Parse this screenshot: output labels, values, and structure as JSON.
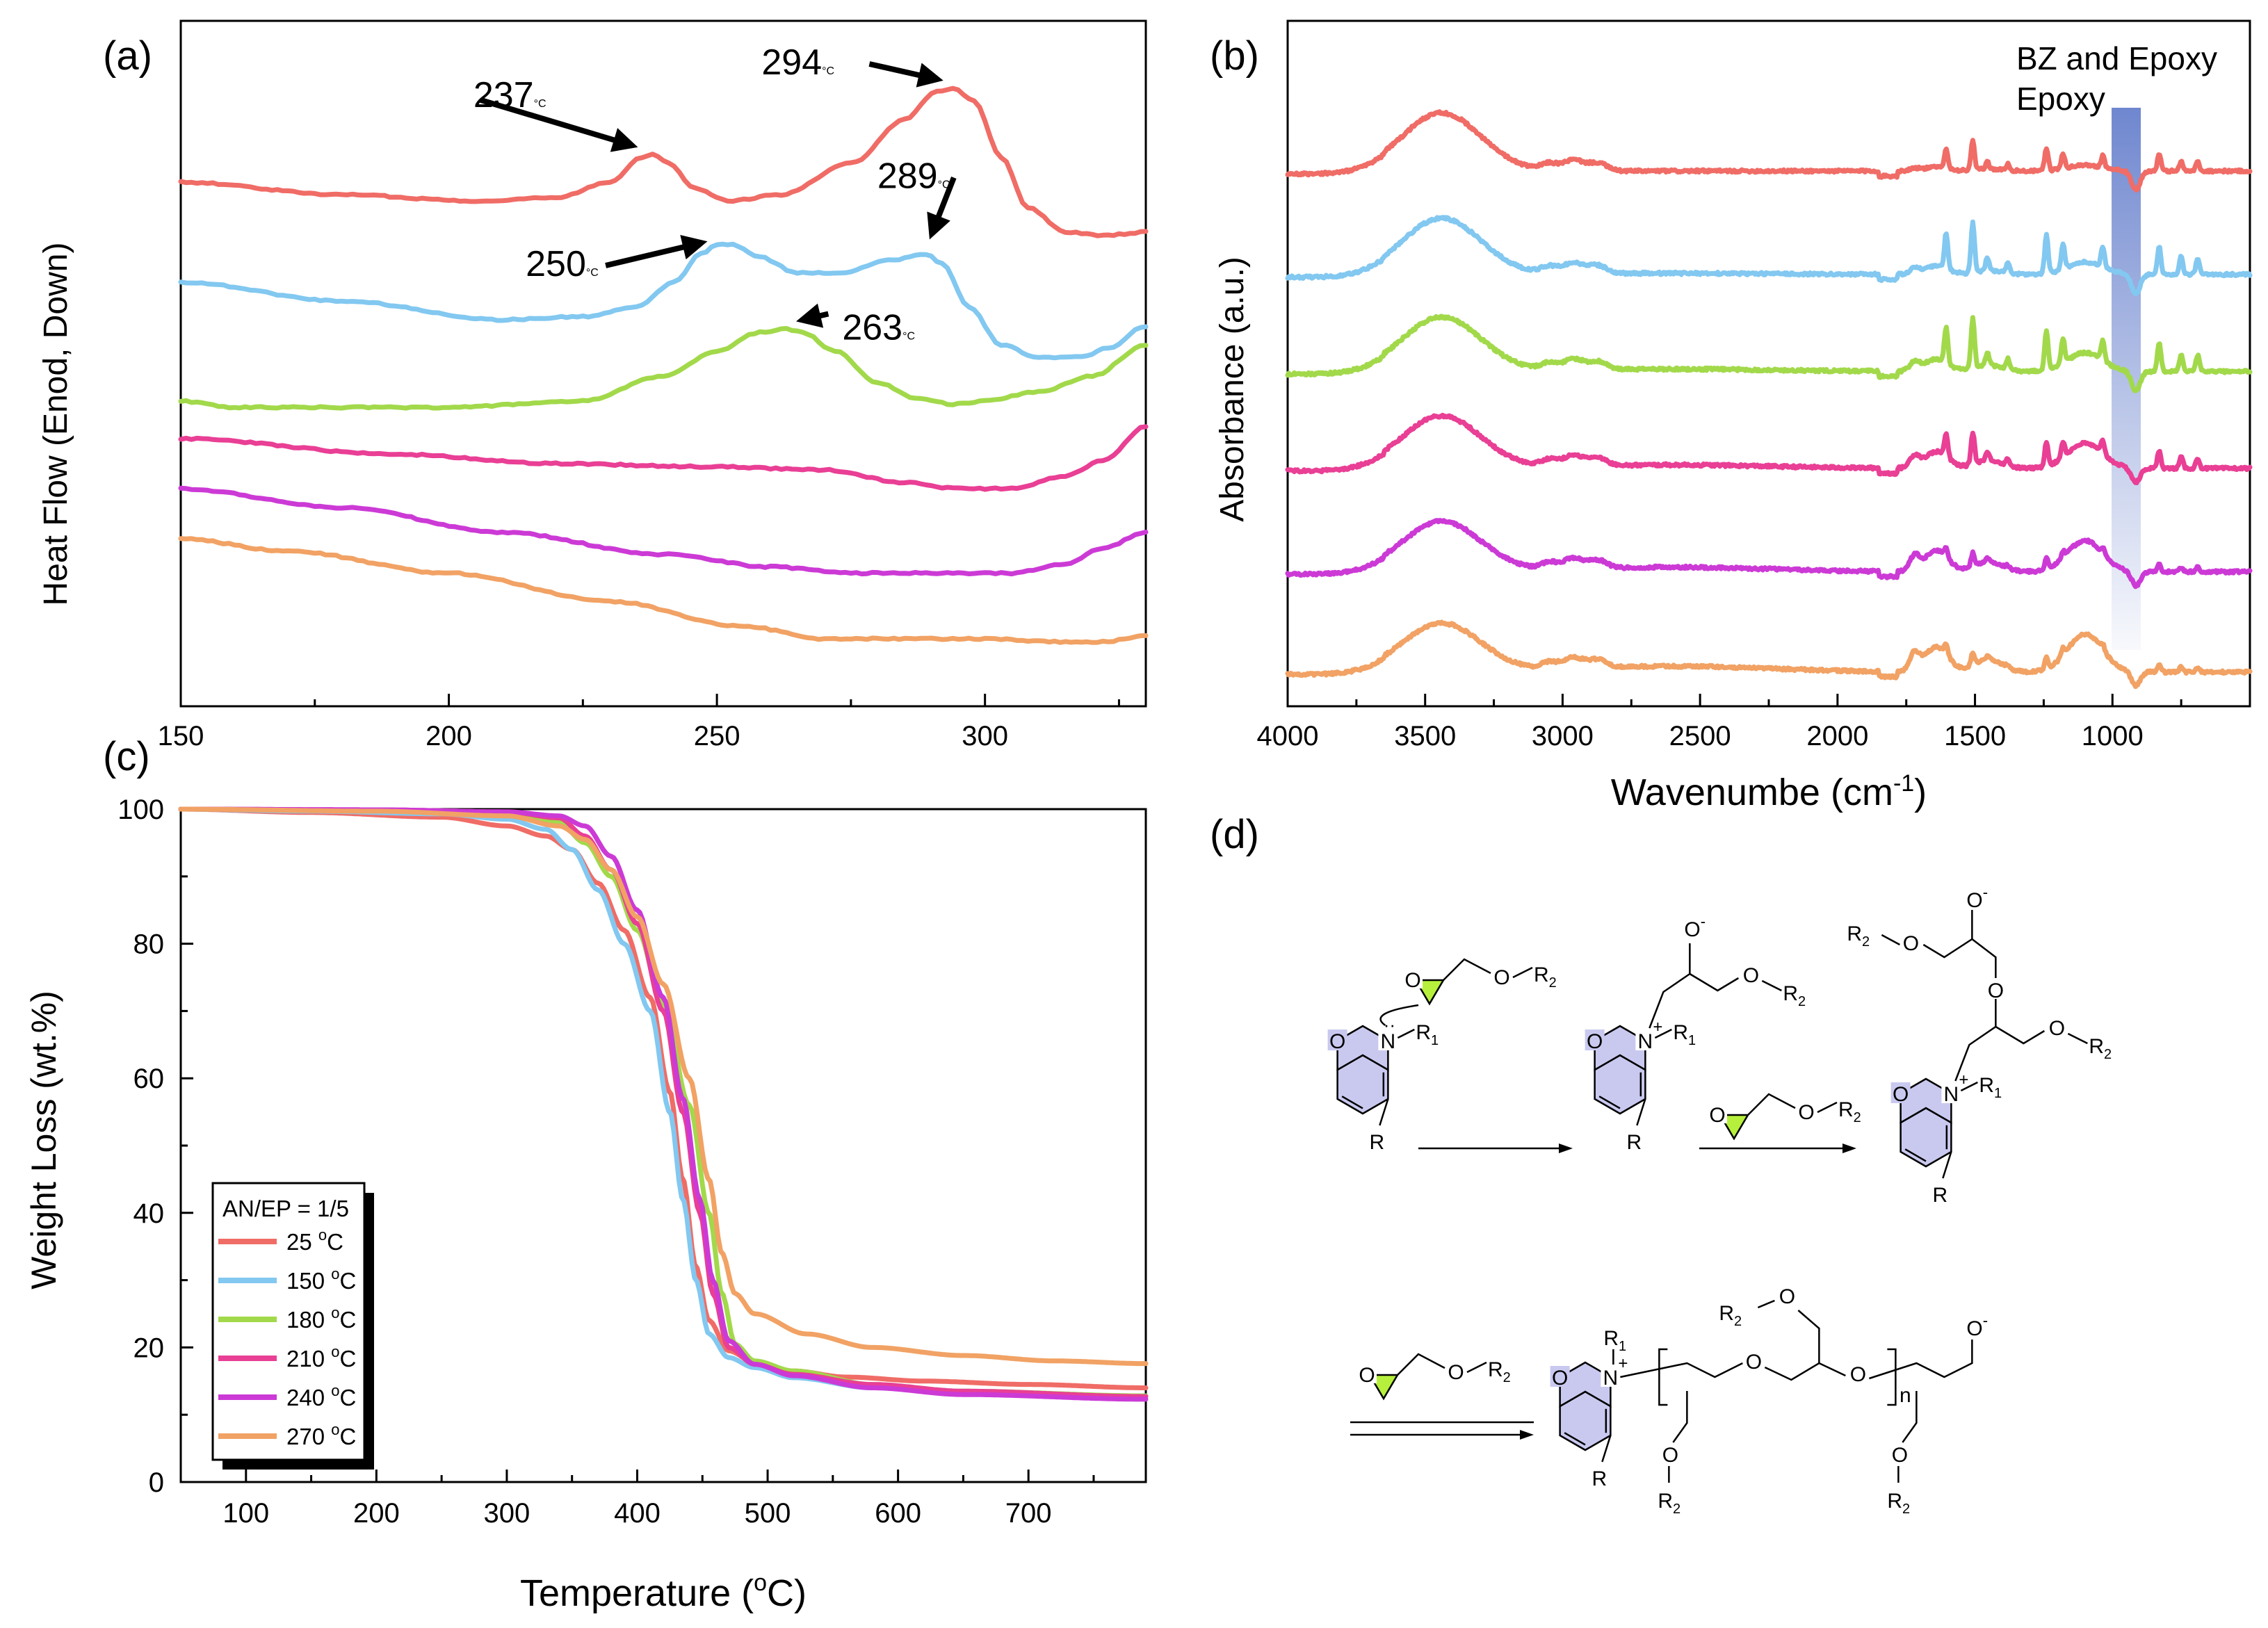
{
  "colors": {
    "red": "#f06c66",
    "blue": "#82c8f0",
    "green": "#a2d94b",
    "pink": "#e93f95",
    "purple": "#cc3ad6",
    "orange": "#f1a264",
    "ring_fill": "#c9c9f0",
    "epoxide_fill": "#b6f03c",
    "band": "#6f87cf"
  },
  "chart_data": [
    {
      "panel": "(a)",
      "type": "line",
      "title": "",
      "xlabel": "",
      "ylabel": "Heat Flow (Enod, Down)",
      "xlim": [
        150,
        330
      ],
      "ylim": [
        0,
        100
      ],
      "xticks": [
        150,
        200,
        250,
        300
      ],
      "series": [
        {
          "name": "25 °C",
          "color": "red",
          "points": [
            [
              150,
              82
            ],
            [
              180,
              80
            ],
            [
              205,
              79
            ],
            [
              220,
              79.5
            ],
            [
              230,
              82
            ],
            [
              236,
              86
            ],
            [
              238,
              86.5
            ],
            [
              241,
              85
            ],
            [
              246,
              81
            ],
            [
              252,
              79
            ],
            [
              262,
              80
            ],
            [
              275,
              85
            ],
            [
              285,
              92
            ],
            [
              291,
              96.5
            ],
            [
              294,
              97
            ],
            [
              298,
              95
            ],
            [
              303,
              86
            ],
            [
              308,
              78
            ],
            [
              315,
              74
            ],
            [
              322,
              73.5
            ],
            [
              330,
              74
            ]
          ]
        },
        {
          "name": "150 °C",
          "color": "blue",
          "points": [
            [
              150,
              66
            ],
            [
              180,
              63
            ],
            [
              210,
              60
            ],
            [
              225,
              60.5
            ],
            [
              235,
              62
            ],
            [
              242,
              66
            ],
            [
              247,
              70.5
            ],
            [
              250,
              72
            ],
            [
              253,
              72
            ],
            [
              258,
              70
            ],
            [
              265,
              67.5
            ],
            [
              273,
              67.5
            ],
            [
              282,
              69.5
            ],
            [
              289,
              70.5
            ],
            [
              292,
              69
            ],
            [
              297,
              62
            ],
            [
              303,
              56
            ],
            [
              310,
              54
            ],
            [
              318,
              54
            ],
            [
              323,
              55.5
            ],
            [
              330,
              59
            ]
          ]
        },
        {
          "name": "180 °C",
          "color": "green",
          "points": [
            [
              150,
              47
            ],
            [
              160,
              46
            ],
            [
              200,
              46
            ],
            [
              225,
              47
            ],
            [
              240,
              51
            ],
            [
              250,
              55
            ],
            [
              258,
              58
            ],
            [
              263,
              58.5
            ],
            [
              266,
              58
            ],
            [
              272,
              55
            ],
            [
              280,
              50
            ],
            [
              287,
              47.5
            ],
            [
              294,
              46.5
            ],
            [
              300,
              47
            ],
            [
              310,
              48.5
            ],
            [
              320,
              51
            ],
            [
              330,
              56
            ]
          ]
        },
        {
          "name": "210 °C",
          "color": "pink",
          "points": [
            [
              150,
              41
            ],
            [
              190,
              38.5
            ],
            [
              220,
              37
            ],
            [
              250,
              36.5
            ],
            [
              270,
              36
            ],
            [
              285,
              34
            ],
            [
              295,
              33
            ],
            [
              305,
              33
            ],
            [
              315,
              35
            ],
            [
              322,
              37.5
            ],
            [
              330,
              43
            ]
          ]
        },
        {
          "name": "240 °C",
          "color": "purple",
          "points": [
            [
              150,
              33
            ],
            [
              180,
              30
            ],
            [
              210,
              26
            ],
            [
              240,
              22.5
            ],
            [
              260,
              20.5
            ],
            [
              275,
              19.5
            ],
            [
              290,
              19.5
            ],
            [
              305,
              19.5
            ],
            [
              315,
              21
            ],
            [
              322,
              23.5
            ],
            [
              330,
              26
            ]
          ]
        },
        {
          "name": "270 °C",
          "color": "orange",
          "points": [
            [
              150,
              25
            ],
            [
              170,
              23
            ],
            [
              200,
              19.5
            ],
            [
              230,
              15
            ],
            [
              255,
              11
            ],
            [
              270,
              9
            ],
            [
              285,
              9
            ],
            [
              300,
              9
            ],
            [
              315,
              8.5
            ],
            [
              322,
              8.5
            ],
            [
              330,
              9.5
            ]
          ]
        }
      ],
      "annotations": [
        {
          "text": "237",
          "x": 237,
          "series": "25 °C"
        },
        {
          "text": "294",
          "x": 294,
          "series": "25 °C"
        },
        {
          "text": "250",
          "x": 250,
          "series": "150 °C"
        },
        {
          "text": "289",
          "x": 289,
          "series": "150 °C"
        },
        {
          "text": "263",
          "x": 263,
          "series": "180 °C"
        }
      ],
      "annotation_unit": "°C"
    },
    {
      "panel": "(b)",
      "type": "line",
      "title": "",
      "xlabel": "Wavenumbe (cm",
      "xlabel_sup": "-1",
      "xlabel_end": ")",
      "ylabel": "Absorbance (a.u.)",
      "xlim": [
        4000,
        500
      ],
      "ylim": [
        0,
        100
      ],
      "xticks": [
        4000,
        3500,
        3000,
        2500,
        2000,
        1500,
        1000
      ],
      "band_label_1": "BZ and Epoxy",
      "band_label_2": "Epoxy",
      "band_center": 950,
      "series": [
        {
          "name": "25 °C",
          "color": "red",
          "offset": 80
        },
        {
          "name": "150 °C",
          "color": "blue",
          "offset": 64
        },
        {
          "name": "180 °C",
          "color": "green",
          "offset": 49
        },
        {
          "name": "210 °C",
          "color": "pink",
          "offset": 34
        },
        {
          "name": "240 °C",
          "color": "purple",
          "offset": 18
        },
        {
          "name": "270 °C",
          "color": "orange",
          "offset": 2.5
        }
      ]
    },
    {
      "panel": "(c)",
      "type": "line",
      "title": "",
      "xlabel": "Temperature (",
      "xlabel_sup": "o",
      "xlabel_end": "C)",
      "ylabel": "Weight Loss (wt.%)",
      "xlim": [
        50,
        790
      ],
      "ylim": [
        0,
        100
      ],
      "xticks": [
        100,
        200,
        300,
        400,
        500,
        600,
        700
      ],
      "yticks": [
        0,
        20,
        40,
        60,
        80,
        100
      ],
      "legend_title": "AN/EP = 1/5",
      "legend_position": "bottom-left",
      "series": [
        {
          "name": "25 °C",
          "label_num": "25 ",
          "color": "red",
          "points": [
            [
              50,
              100
            ],
            [
              150,
              99.5
            ],
            [
              250,
              98.8
            ],
            [
              300,
              97.5
            ],
            [
              330,
              96
            ],
            [
              350,
              94
            ],
            [
              370,
              89
            ],
            [
              390,
              82
            ],
            [
              410,
              72
            ],
            [
              425,
              58
            ],
            [
              435,
              45
            ],
            [
              445,
              32
            ],
            [
              455,
              24
            ],
            [
              470,
              19.5
            ],
            [
              490,
              17.8
            ],
            [
              520,
              16.5
            ],
            [
              560,
              15.6
            ],
            [
              620,
              15
            ],
            [
              700,
              14.5
            ],
            [
              790,
              14
            ]
          ]
        },
        {
          "name": "150 °C",
          "label_num": "150 ",
          "color": "blue",
          "points": [
            [
              50,
              100
            ],
            [
              150,
              99.7
            ],
            [
              250,
              99.3
            ],
            [
              300,
              98.5
            ],
            [
              330,
              97
            ],
            [
              350,
              94
            ],
            [
              370,
              88
            ],
            [
              390,
              80
            ],
            [
              410,
              70
            ],
            [
              425,
              55
            ],
            [
              435,
              42
            ],
            [
              445,
              30
            ],
            [
              455,
              22
            ],
            [
              470,
              18.5
            ],
            [
              490,
              17
            ],
            [
              520,
              15.5
            ],
            [
              580,
              14
            ],
            [
              650,
              13.3
            ],
            [
              790,
              12.8
            ]
          ]
        },
        {
          "name": "180 °C",
          "label_num": "180 ",
          "color": "green",
          "points": [
            [
              50,
              100
            ],
            [
              200,
              99.8
            ],
            [
              300,
              99.3
            ],
            [
              340,
              98
            ],
            [
              360,
              95
            ],
            [
              380,
              90
            ],
            [
              400,
              82
            ],
            [
              420,
              71
            ],
            [
              440,
              56
            ],
            [
              455,
              40
            ],
            [
              465,
              28
            ],
            [
              475,
              20.5
            ],
            [
              490,
              18
            ],
            [
              520,
              16.5
            ],
            [
              580,
              14.5
            ],
            [
              650,
              13.5
            ],
            [
              790,
              12.8
            ]
          ]
        },
        {
          "name": "210 °C",
          "label_num": "210 ",
          "color": "pink",
          "points": [
            [
              50,
              100
            ],
            [
              200,
              99.9
            ],
            [
              300,
              99.6
            ],
            [
              340,
              98.7
            ],
            [
              360,
              96
            ],
            [
              380,
              91
            ],
            [
              400,
              83
            ],
            [
              420,
              70
            ],
            [
              435,
              55
            ],
            [
              448,
              40
            ],
            [
              458,
              28
            ],
            [
              470,
              20
            ],
            [
              490,
              17.5
            ],
            [
              520,
              16
            ],
            [
              580,
              14.5
            ],
            [
              650,
              13.5
            ],
            [
              790,
              12.7
            ]
          ]
        },
        {
          "name": "240 °C",
          "label_num": "240 ",
          "color": "purple",
          "points": [
            [
              50,
              100
            ],
            [
              200,
              99.9
            ],
            [
              300,
              99.6
            ],
            [
              340,
              99
            ],
            [
              360,
              97.5
            ],
            [
              380,
              93
            ],
            [
              400,
              85
            ],
            [
              420,
              72
            ],
            [
              435,
              57
            ],
            [
              448,
              42
            ],
            [
              458,
              30
            ],
            [
              470,
              21
            ],
            [
              490,
              17.5
            ],
            [
              520,
              15.8
            ],
            [
              580,
              14
            ],
            [
              650,
              13
            ],
            [
              790,
              12.3
            ]
          ]
        },
        {
          "name": "270 °C",
          "label_num": "270 ",
          "color": "orange",
          "points": [
            [
              50,
              100
            ],
            [
              200,
              99.7
            ],
            [
              300,
              99
            ],
            [
              340,
              97.5
            ],
            [
              360,
              95.5
            ],
            [
              380,
              91
            ],
            [
              400,
              84
            ],
            [
              420,
              74
            ],
            [
              440,
              60
            ],
            [
              455,
              45
            ],
            [
              465,
              34
            ],
            [
              475,
              28
            ],
            [
              490,
              25
            ],
            [
              530,
              22
            ],
            [
              580,
              20
            ],
            [
              650,
              18.8
            ],
            [
              720,
              18
            ],
            [
              790,
              17.6
            ]
          ]
        }
      ]
    }
  ],
  "panels": {
    "a": "(a)",
    "b": "(b)",
    "c": "(c)",
    "d": "(d)"
  },
  "scheme": {
    "O": "O",
    "N": "N",
    "R": "R",
    "R1": "R",
    "R1_sub": "1",
    "R2": "R",
    "R2_sub": "2",
    "plus": "+",
    "minus": "-",
    "n": "n"
  }
}
